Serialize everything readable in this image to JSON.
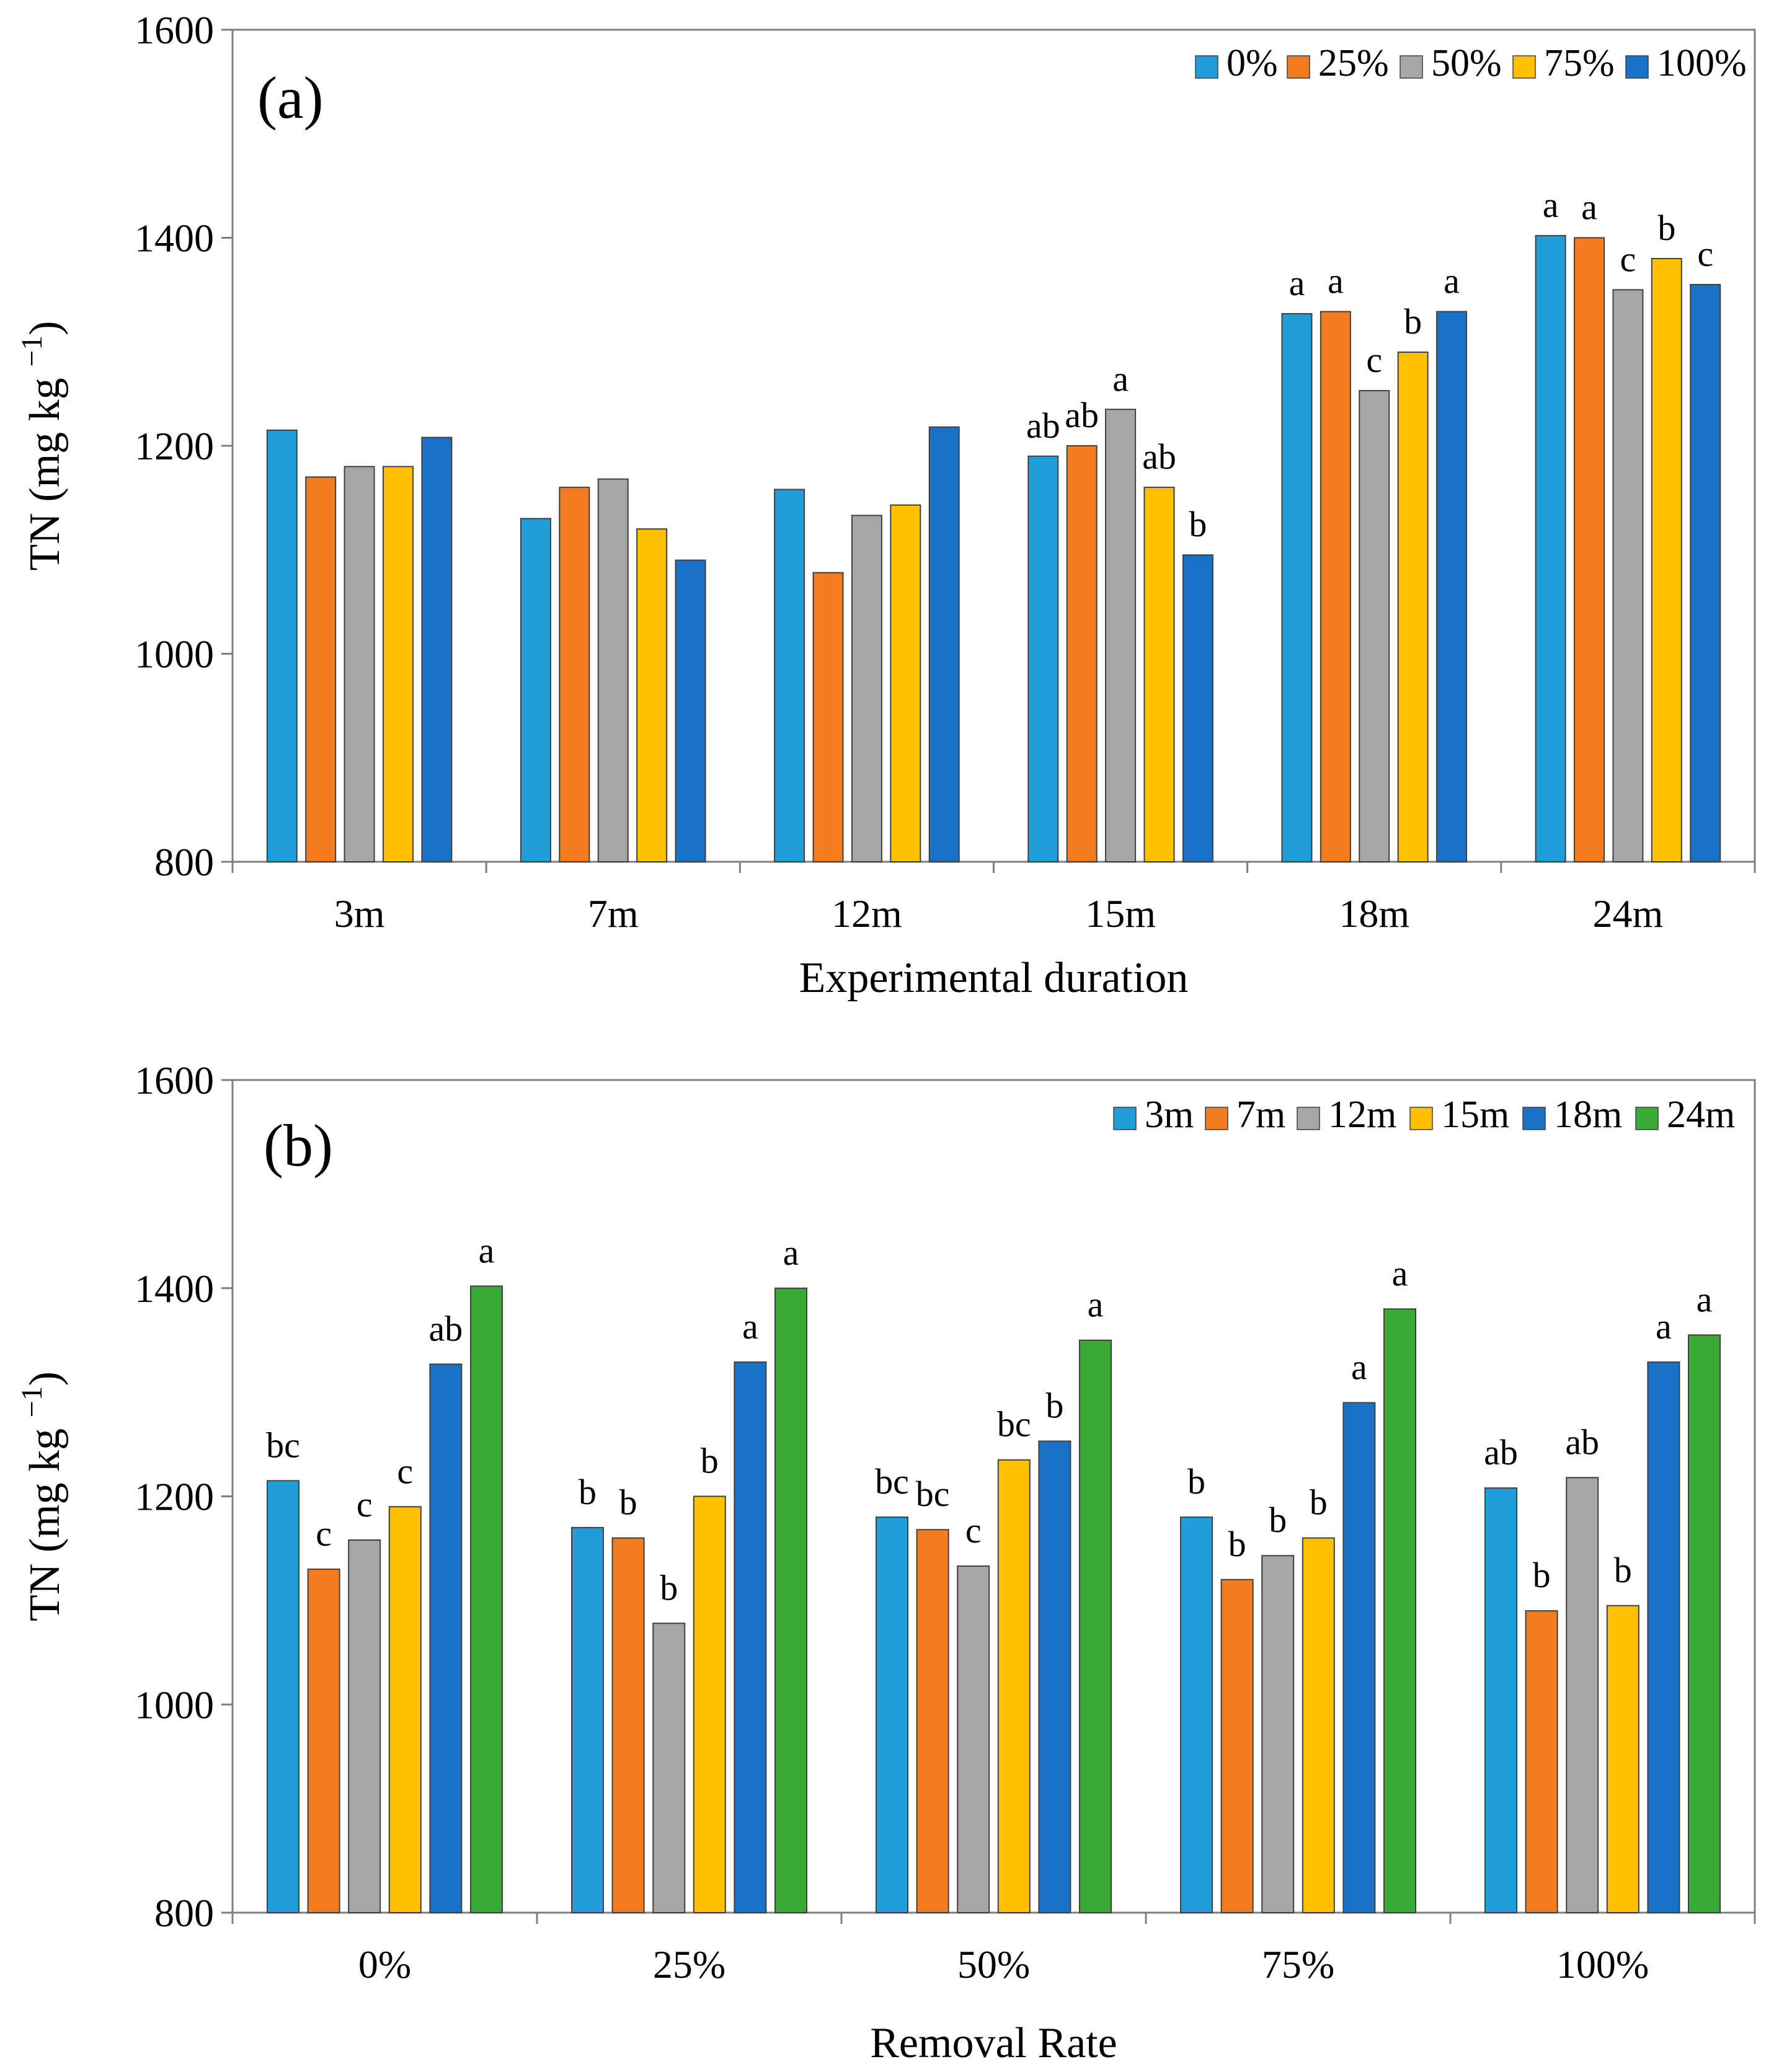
{
  "chart_data": [
    {
      "type": "bar",
      "panel_label": "(a)",
      "xlabel": "Experimental duration",
      "ylabel": "TN (mg kg",
      "ylabel_sup": "−1",
      "ylabel_end": ")",
      "ylim": [
        800,
        1600
      ],
      "yticks": [
        "800",
        "1000",
        "1200",
        "1400",
        "1600"
      ],
      "categories": [
        "3m",
        "7m",
        "12m",
        "15m",
        "18m",
        "24m"
      ],
      "legend_position": "top-right",
      "series": [
        {
          "name": "0%",
          "color": "#1f9ed9",
          "values": [
            1215,
            1130,
            1158,
            1190,
            1327,
            1402
          ],
          "labels": [
            "",
            "",
            "",
            "ab",
            "a",
            "a"
          ]
        },
        {
          "name": "25%",
          "color": "#f47c20",
          "values": [
            1170,
            1160,
            1078,
            1200,
            1329,
            1400
          ],
          "labels": [
            "",
            "",
            "",
            "ab",
            "a",
            "a"
          ]
        },
        {
          "name": "50%",
          "color": "#a6a6a6",
          "values": [
            1180,
            1168,
            1133,
            1235,
            1253,
            1350
          ],
          "labels": [
            "",
            "",
            "",
            "a",
            "c",
            "c"
          ]
        },
        {
          "name": "75%",
          "color": "#ffc000",
          "values": [
            1180,
            1120,
            1143,
            1160,
            1290,
            1380
          ],
          "labels": [
            "",
            "",
            "",
            "ab",
            "b",
            "b"
          ]
        },
        {
          "name": "100%",
          "color": "#1a72c8",
          "values": [
            1208,
            1090,
            1218,
            1095,
            1329,
            1355
          ],
          "labels": [
            "",
            "",
            "",
            "b",
            "a",
            "c"
          ]
        }
      ]
    },
    {
      "type": "bar",
      "panel_label": "(b)",
      "xlabel": "Removal Rate",
      "ylabel": "TN (mg kg",
      "ylabel_sup": "−1",
      "ylabel_end": ")",
      "ylim": [
        800,
        1600
      ],
      "yticks": [
        "800",
        "1000",
        "1200",
        "1400",
        "1600"
      ],
      "categories": [
        "0%",
        "25%",
        "50%",
        "75%",
        "100%"
      ],
      "legend_position": "top-right",
      "series": [
        {
          "name": "3m",
          "color": "#1f9ed9",
          "values": [
            1215,
            1170,
            1180,
            1180,
            1208
          ],
          "labels": [
            "bc",
            "b",
            "bc",
            "b",
            "ab"
          ]
        },
        {
          "name": "7m",
          "color": "#f47c20",
          "values": [
            1130,
            1160,
            1168,
            1120,
            1090
          ],
          "labels": [
            "c",
            "b",
            "bc",
            "b",
            "b"
          ]
        },
        {
          "name": "12m",
          "color": "#a6a6a6",
          "values": [
            1158,
            1078,
            1133,
            1143,
            1218
          ],
          "labels": [
            "c",
            "b",
            "c",
            "b",
            "ab"
          ]
        },
        {
          "name": "15m",
          "color": "#ffc000",
          "values": [
            1190,
            1200,
            1235,
            1160,
            1095
          ],
          "labels": [
            "c",
            "b",
            "bc",
            "b",
            "b"
          ]
        },
        {
          "name": "18m",
          "color": "#1a72c8",
          "values": [
            1327,
            1329,
            1253,
            1290,
            1329
          ],
          "labels": [
            "ab",
            "a",
            "b",
            "a",
            "a"
          ]
        },
        {
          "name": "24m",
          "color": "#3aaa35",
          "values": [
            1402,
            1400,
            1350,
            1380,
            1355
          ],
          "labels": [
            "a",
            "a",
            "a",
            "a",
            "a"
          ]
        }
      ]
    }
  ]
}
